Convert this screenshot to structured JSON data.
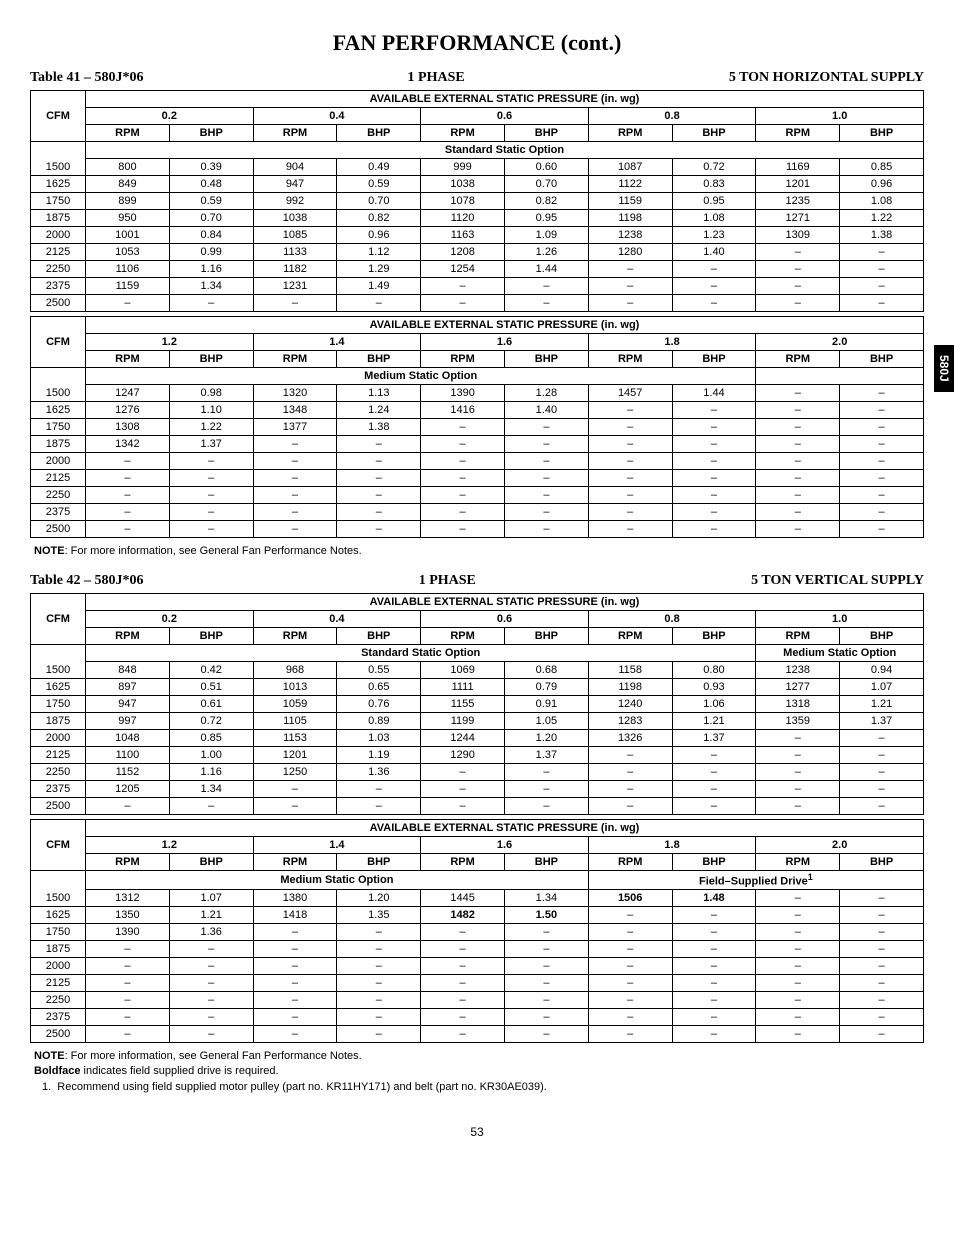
{
  "page": {
    "title": "FAN PERFORMANCE (cont.)",
    "sideTab": "580J",
    "pageNumber": "53"
  },
  "table41": {
    "label": "Table 41 – 580J*06",
    "phase": "1 PHASE",
    "supply": "5 TON HORIZONTAL SUPPLY",
    "bannerTitle": "AVAILABLE EXTERNAL STATIC PRESSURE (in. wg)",
    "cfmLabel": "CFM",
    "rpmLabel": "RPM",
    "bhpLabel": "BHP",
    "top": {
      "pressures": [
        "0.2",
        "0.4",
        "0.6",
        "0.8",
        "1.0"
      ],
      "option": "Standard Static Option",
      "cfm": [
        "1500",
        "1625",
        "1750",
        "1875",
        "2000",
        "2125",
        "2250",
        "2375",
        "2500"
      ],
      "rows": [
        [
          "800",
          "0.39",
          "904",
          "0.49",
          "999",
          "0.60",
          "1087",
          "0.72",
          "1169",
          "0.85"
        ],
        [
          "849",
          "0.48",
          "947",
          "0.59",
          "1038",
          "0.70",
          "1122",
          "0.83",
          "1201",
          "0.96"
        ],
        [
          "899",
          "0.59",
          "992",
          "0.70",
          "1078",
          "0.82",
          "1159",
          "0.95",
          "1235",
          "1.08"
        ],
        [
          "950",
          "0.70",
          "1038",
          "0.82",
          "1120",
          "0.95",
          "1198",
          "1.08",
          "1271",
          "1.22"
        ],
        [
          "1001",
          "0.84",
          "1085",
          "0.96",
          "1163",
          "1.09",
          "1238",
          "1.23",
          "1309",
          "1.38"
        ],
        [
          "1053",
          "0.99",
          "1133",
          "1.12",
          "1208",
          "1.26",
          "1280",
          "1.40",
          "–",
          "–"
        ],
        [
          "1106",
          "1.16",
          "1182",
          "1.29",
          "1254",
          "1.44",
          "–",
          "–",
          "–",
          "–"
        ],
        [
          "1159",
          "1.34",
          "1231",
          "1.49",
          "–",
          "–",
          "–",
          "–",
          "–",
          "–"
        ],
        [
          "–",
          "–",
          "–",
          "–",
          "–",
          "–",
          "–",
          "–",
          "–",
          "–"
        ]
      ]
    },
    "bottom": {
      "pressures": [
        "1.2",
        "1.4",
        "1.6",
        "1.8",
        "2.0"
      ],
      "option": "Medium Static Option",
      "cfm": [
        "1500",
        "1625",
        "1750",
        "1875",
        "2000",
        "2125",
        "2250",
        "2375",
        "2500"
      ],
      "rows": [
        [
          "1247",
          "0.98",
          "1320",
          "1.13",
          "1390",
          "1.28",
          "1457",
          "1.44",
          "–",
          "–"
        ],
        [
          "1276",
          "1.10",
          "1348",
          "1.24",
          "1416",
          "1.40",
          "–",
          "–",
          "–",
          "–"
        ],
        [
          "1308",
          "1.22",
          "1377",
          "1.38",
          "–",
          "–",
          "–",
          "–",
          "–",
          "–"
        ],
        [
          "1342",
          "1.37",
          "–",
          "–",
          "–",
          "–",
          "–",
          "–",
          "–",
          "–"
        ],
        [
          "–",
          "–",
          "–",
          "–",
          "–",
          "–",
          "–",
          "–",
          "–",
          "–"
        ],
        [
          "–",
          "–",
          "–",
          "–",
          "–",
          "–",
          "–",
          "–",
          "–",
          "–"
        ],
        [
          "–",
          "–",
          "–",
          "–",
          "–",
          "–",
          "–",
          "–",
          "–",
          "–"
        ],
        [
          "–",
          "–",
          "–",
          "–",
          "–",
          "–",
          "–",
          "–",
          "–",
          "–"
        ],
        [
          "–",
          "–",
          "–",
          "–",
          "–",
          "–",
          "–",
          "–",
          "–",
          "–"
        ]
      ]
    },
    "note": "NOTE: For more information, see General Fan Performance Notes."
  },
  "table42": {
    "label": "Table 42 – 580J*06",
    "phase": "1 PHASE",
    "supply": "5 TON VERTICAL SUPPLY",
    "bannerTitle": "AVAILABLE EXTERNAL STATIC PRESSURE (in. wg)",
    "top": {
      "pressures": [
        "0.2",
        "0.4",
        "0.6",
        "0.8",
        "1.0"
      ],
      "optionLeft": "Standard Static Option",
      "optionRight": "Medium Static Option",
      "cfm": [
        "1500",
        "1625",
        "1750",
        "1875",
        "2000",
        "2125",
        "2250",
        "2375",
        "2500"
      ],
      "rows": [
        [
          "848",
          "0.42",
          "968",
          "0.55",
          "1069",
          "0.68",
          "1158",
          "0.80",
          "1238",
          "0.94"
        ],
        [
          "897",
          "0.51",
          "1013",
          "0.65",
          "1111",
          "0.79",
          "1198",
          "0.93",
          "1277",
          "1.07"
        ],
        [
          "947",
          "0.61",
          "1059",
          "0.76",
          "1155",
          "0.91",
          "1240",
          "1.06",
          "1318",
          "1.21"
        ],
        [
          "997",
          "0.72",
          "1105",
          "0.89",
          "1199",
          "1.05",
          "1283",
          "1.21",
          "1359",
          "1.37"
        ],
        [
          "1048",
          "0.85",
          "1153",
          "1.03",
          "1244",
          "1.20",
          "1326",
          "1.37",
          "–",
          "–"
        ],
        [
          "1100",
          "1.00",
          "1201",
          "1.19",
          "1290",
          "1.37",
          "–",
          "–",
          "–",
          "–"
        ],
        [
          "1152",
          "1.16",
          "1250",
          "1.36",
          "–",
          "–",
          "–",
          "–",
          "–",
          "–"
        ],
        [
          "1205",
          "1.34",
          "–",
          "–",
          "–",
          "–",
          "–",
          "–",
          "–",
          "–"
        ],
        [
          "–",
          "–",
          "–",
          "–",
          "–",
          "–",
          "–",
          "–",
          "–",
          "–"
        ]
      ]
    },
    "bottom": {
      "pressures": [
        "1.2",
        "1.4",
        "1.6",
        "1.8",
        "2.0"
      ],
      "optionLeft": "Medium Static Option",
      "optionRight": "Field–Supplied Drive",
      "optionRightSup": "1",
      "cfm": [
        "1500",
        "1625",
        "1750",
        "1875",
        "2000",
        "2125",
        "2250",
        "2375",
        "2500"
      ],
      "rows": [
        [
          "1312",
          "1.07",
          "1380",
          "1.20",
          "1445",
          "1.34",
          "1506",
          "1.48",
          "–",
          "–"
        ],
        [
          "1350",
          "1.21",
          "1418",
          "1.35",
          "1482",
          "1.50",
          "–",
          "–",
          "–",
          "–"
        ],
        [
          "1390",
          "1.36",
          "–",
          "–",
          "–",
          "–",
          "–",
          "–",
          "–",
          "–"
        ],
        [
          "–",
          "–",
          "–",
          "–",
          "–",
          "–",
          "–",
          "–",
          "–",
          "–"
        ],
        [
          "–",
          "–",
          "–",
          "–",
          "–",
          "–",
          "–",
          "–",
          "–",
          "–"
        ],
        [
          "–",
          "–",
          "–",
          "–",
          "–",
          "–",
          "–",
          "–",
          "–",
          "–"
        ],
        [
          "–",
          "–",
          "–",
          "–",
          "–",
          "–",
          "–",
          "–",
          "–",
          "–"
        ],
        [
          "–",
          "–",
          "–",
          "–",
          "–",
          "–",
          "–",
          "–",
          "–",
          "–"
        ],
        [
          "–",
          "–",
          "–",
          "–",
          "–",
          "–",
          "–",
          "–",
          "–",
          "–"
        ]
      ],
      "boldCells": {
        "0": [
          6,
          7
        ],
        "1": [
          4,
          5
        ]
      }
    },
    "notes": [
      "NOTE: For more information, see General Fan Performance Notes.",
      "Boldface indicates field supplied drive is required.",
      " 1.  Recommend using field supplied motor pulley (part no. KR11HY171) and belt (part no. KR30AE039)."
    ]
  }
}
